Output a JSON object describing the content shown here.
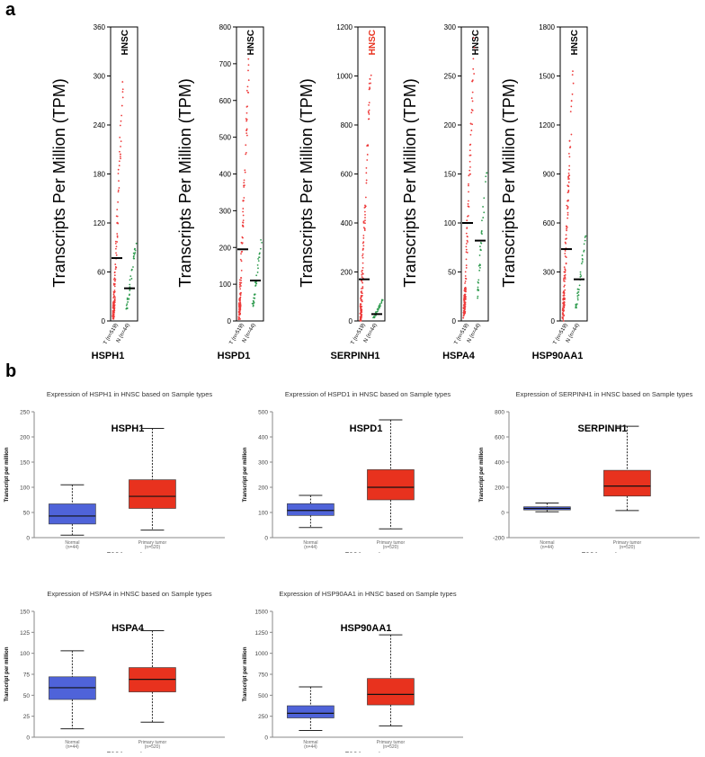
{
  "panel_labels": {
    "a": "a",
    "b": "b"
  },
  "colors": {
    "tumor": "#e8321e",
    "normal": "#4f63d9",
    "tumor_dots": "#ee3b3b",
    "normal_dots": "#2e9b4e",
    "highlight_title": "#e8321e"
  },
  "chart_data": [
    {
      "type": "scatter",
      "gene": "HSPH1",
      "title": "HNSC",
      "title_color": "#000000",
      "ylabel": "Transcripts Per Million (TPM)",
      "yticks": [
        0,
        60,
        120,
        180,
        240,
        300,
        360
      ],
      "ylim": [
        0,
        360
      ],
      "xticks": [
        "T (n=519)",
        "N (n=44)"
      ],
      "tumor_median": 77,
      "normal_median": 40,
      "tumor_max": 335,
      "normal_max": 95
    },
    {
      "type": "scatter",
      "gene": "HSPD1",
      "title": "HNSC",
      "title_color": "#000000",
      "ylabel": "Transcripts Per Million (TPM)",
      "yticks": [
        0,
        100,
        200,
        300,
        400,
        500,
        600,
        700,
        800
      ],
      "ylim": [
        0,
        800
      ],
      "xticks": [
        "T (n=519)",
        "N (n=44)"
      ],
      "tumor_median": 195,
      "normal_median": 110,
      "tumor_max": 770,
      "normal_max": 225
    },
    {
      "type": "scatter",
      "gene": "SERPINH1",
      "title": "HNSC",
      "title_color": "#e8321e",
      "ylabel": "Transcripts Per Million (TPM)",
      "yticks": [
        0,
        200,
        400,
        600,
        800,
        1000,
        1200
      ],
      "ylim": [
        0,
        1200
      ],
      "xticks": [
        "T (n=519)",
        "N (n=44)"
      ],
      "tumor_median": 170,
      "normal_median": 28,
      "tumor_max": 1110,
      "normal_max": 90
    },
    {
      "type": "scatter",
      "gene": "HSPA4",
      "title": "HNSC",
      "title_color": "#000000",
      "ylabel": "Transcripts Per Million (TPM)",
      "yticks": [
        0,
        50,
        100,
        150,
        200,
        250,
        300
      ],
      "ylim": [
        0,
        300
      ],
      "xticks": [
        "T (n=519)",
        "N (n=44)"
      ],
      "tumor_median": 100,
      "normal_median": 82,
      "tumor_max": 295,
      "normal_max": 155
    },
    {
      "type": "scatter",
      "gene": "HSP90AA1",
      "title": "HNSC",
      "title_color": "#000000",
      "ylabel": "Transcripts Per Million (TPM)",
      "yticks": [
        0,
        300,
        600,
        900,
        1200,
        1500,
        1800
      ],
      "ylim": [
        0,
        1800
      ],
      "xticks": [
        "T (n=519)",
        "N (n=44)"
      ],
      "tumor_median": 440,
      "normal_median": 255,
      "tumor_max": 1620,
      "normal_max": 530
    },
    {
      "type": "box",
      "title": "Expression of HSPH1 in HNSC based on Sample types",
      "gene": "HSPH1",
      "ylabel": "Transcript per million",
      "xlabel": "TCGA samples",
      "yticks": [
        0,
        50,
        100,
        150,
        200,
        250
      ],
      "ylim": [
        0,
        250
      ],
      "categories": [
        "Normal",
        "Primary tumor"
      ],
      "counts": [
        "(n=44)",
        "(n=520)"
      ],
      "boxes": [
        {
          "min": 5,
          "q1": 27,
          "median": 43,
          "q3": 67,
          "max": 105
        },
        {
          "min": 15,
          "q1": 58,
          "median": 82,
          "q3": 115,
          "max": 217
        }
      ]
    },
    {
      "type": "box",
      "title": "Expression of HSPD1 in HNSC based on Sample types",
      "gene": "HSPD1",
      "ylabel": "Transcript per million",
      "xlabel": "TCGA samples",
      "yticks": [
        0,
        100,
        200,
        300,
        400,
        500
      ],
      "ylim": [
        0,
        500
      ],
      "categories": [
        "Normal",
        "Primary tumor"
      ],
      "counts": [
        "(n=44)",
        "(n=520)"
      ],
      "boxes": [
        {
          "min": 40,
          "q1": 88,
          "median": 108,
          "q3": 135,
          "max": 168
        },
        {
          "min": 35,
          "q1": 150,
          "median": 200,
          "q3": 270,
          "max": 468
        }
      ]
    },
    {
      "type": "box",
      "title": "Expression of SERPINH1 in HNSC based on Sample types",
      "gene": "SERPINH1",
      "ylabel": "Transcript per million",
      "xlabel": "TCGA samples",
      "yticks": [
        -200,
        0,
        200,
        400,
        600,
        800
      ],
      "ylim": [
        -200,
        800
      ],
      "categories": [
        "Normal",
        "Primary tumor"
      ],
      "counts": [
        "(n=44)",
        "(n=520)"
      ],
      "boxes": [
        {
          "min": 5,
          "q1": 20,
          "median": 32,
          "q3": 45,
          "max": 75
        },
        {
          "min": 15,
          "q1": 130,
          "median": 210,
          "q3": 335,
          "max": 685
        }
      ]
    },
    {
      "type": "box",
      "title": "Expression of HSPA4 in HNSC based on Sample types",
      "gene": "HSPA4",
      "ylabel": "Transcript per million",
      "xlabel": "TCGA samples",
      "yticks": [
        0,
        25,
        50,
        75,
        100,
        125,
        150
      ],
      "ylim": [
        0,
        150
      ],
      "categories": [
        "Normal",
        "Primary tumor"
      ],
      "counts": [
        "(n=44)",
        "(n=520)"
      ],
      "boxes": [
        {
          "min": 10,
          "q1": 45,
          "median": 59,
          "q3": 72,
          "max": 103
        },
        {
          "min": 18,
          "q1": 54,
          "median": 69,
          "q3": 83,
          "max": 127
        }
      ]
    },
    {
      "type": "box",
      "title": "Expression of HSP90AA1 in HNSC based on Sample types",
      "gene": "HSP90AA1",
      "ylabel": "Transcript per million",
      "xlabel": "TCGA samples",
      "yticks": [
        0,
        250,
        500,
        750,
        1000,
        1250,
        1500
      ],
      "ylim": [
        0,
        1500
      ],
      "categories": [
        "Normal",
        "Primary tumor"
      ],
      "counts": [
        "(n=44)",
        "(n=520)"
      ],
      "boxes": [
        {
          "min": 80,
          "q1": 230,
          "median": 285,
          "q3": 375,
          "max": 600
        },
        {
          "min": 135,
          "q1": 385,
          "median": 510,
          "q3": 700,
          "max": 1220
        }
      ]
    }
  ]
}
